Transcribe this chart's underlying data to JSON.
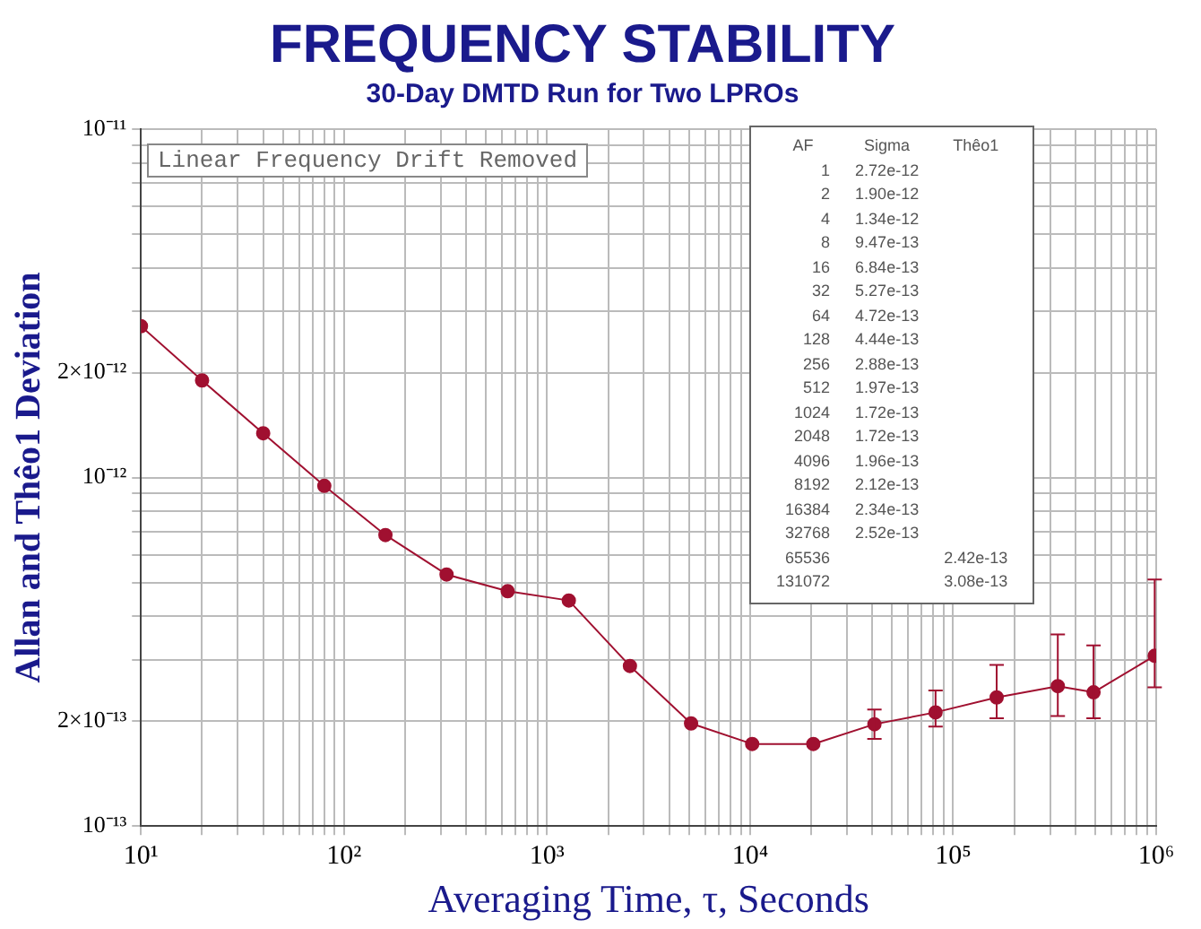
{
  "chart_data": {
    "type": "line",
    "title": "FREQUENCY STABILITY",
    "subtitle": "30-Day DMTD Run for Two LPROs",
    "xlabel": "Averaging Time, τ, Seconds",
    "ylabel": "Allan and Thêo1 Deviation",
    "x": [
      10,
      20,
      40,
      80,
      160,
      320,
      640,
      1280,
      2560,
      5120,
      10240,
      20480,
      40960,
      81920,
      163840,
      327680,
      491520,
      983040
    ],
    "series": [
      {
        "color": "#a01030",
        "values": [
          2.72e-12,
          1.9e-12,
          1.34e-12,
          9.47e-13,
          6.84e-13,
          5.27e-13,
          4.72e-13,
          4.44e-13,
          2.88e-13,
          1.97e-13,
          1.72e-13,
          1.72e-13,
          1.96e-13,
          2.12e-13,
          2.34e-13,
          2.52e-13,
          2.42e-13,
          3.08e-13
        ],
        "errors": [
          null,
          null,
          null,
          null,
          null,
          null,
          null,
          null,
          null,
          null,
          null,
          null,
          [
            1.78e-13,
            2.16e-13
          ],
          [
            1.93e-13,
            2.45e-13
          ],
          [
            2.04e-13,
            2.9e-13
          ],
          [
            2.07e-13,
            3.55e-13
          ],
          [
            2.04e-13,
            3.3e-13
          ],
          [
            2.5e-13,
            5.1e-13
          ]
        ]
      }
    ],
    "log": "xy",
    "xlim": [
      10,
      1000000
    ],
    "ylim": [
      1e-13,
      1e-11
    ],
    "xticks": [
      {
        "value": 10,
        "label": "10¹"
      },
      {
        "value": 20,
        "label": null
      },
      {
        "value": 30,
        "label": null
      },
      {
        "value": 40,
        "label": null
      },
      {
        "value": 50,
        "label": null
      },
      {
        "value": 60,
        "label": null
      },
      {
        "value": 70,
        "label": null
      },
      {
        "value": 80,
        "label": null
      },
      {
        "value": 90,
        "label": null
      },
      {
        "value": 100,
        "label": "10²"
      },
      {
        "value": 200,
        "label": null
      },
      {
        "value": 300,
        "label": null
      },
      {
        "value": 400,
        "label": null
      },
      {
        "value": 500,
        "label": null
      },
      {
        "value": 600,
        "label": null
      },
      {
        "value": 700,
        "label": null
      },
      {
        "value": 800,
        "label": null
      },
      {
        "value": 900,
        "label": null
      },
      {
        "value": 1000,
        "label": "10³"
      },
      {
        "value": 2000,
        "label": null
      },
      {
        "value": 3000,
        "label": null
      },
      {
        "value": 4000,
        "label": null
      },
      {
        "value": 5000,
        "label": null
      },
      {
        "value": 6000,
        "label": null
      },
      {
        "value": 7000,
        "label": null
      },
      {
        "value": 8000,
        "label": null
      },
      {
        "value": 9000,
        "label": null
      },
      {
        "value": 10000,
        "label": "10⁴"
      },
      {
        "value": 20000,
        "label": null
      },
      {
        "value": 30000,
        "label": null
      },
      {
        "value": 40000,
        "label": null
      },
      {
        "value": 50000,
        "label": null
      },
      {
        "value": 60000,
        "label": null
      },
      {
        "value": 70000,
        "label": null
      },
      {
        "value": 80000,
        "label": null
      },
      {
        "value": 90000,
        "label": null
      },
      {
        "value": 100000,
        "label": "10⁵"
      },
      {
        "value": 200000,
        "label": null
      },
      {
        "value": 300000,
        "label": null
      },
      {
        "value": 400000,
        "label": null
      },
      {
        "value": 500000,
        "label": null
      },
      {
        "value": 600000,
        "label": null
      },
      {
        "value": 700000,
        "label": null
      },
      {
        "value": 800000,
        "label": null
      },
      {
        "value": 900000,
        "label": null
      },
      {
        "value": 1000000,
        "label": "10⁶"
      }
    ],
    "yticks": [
      {
        "value": 1e-13,
        "label": "10⁻¹³"
      },
      {
        "value": 2e-13,
        "label": "2×10⁻¹³"
      },
      {
        "value": 3e-13,
        "label": null
      },
      {
        "value": 4e-13,
        "label": null
      },
      {
        "value": 5e-13,
        "label": null
      },
      {
        "value": 6e-13,
        "label": null
      },
      {
        "value": 7e-13,
        "label": null
      },
      {
        "value": 8e-13,
        "label": null
      },
      {
        "value": 9e-13,
        "label": null
      },
      {
        "value": 1e-12,
        "label": "10⁻¹²"
      },
      {
        "value": 2e-12,
        "label": "2×10⁻¹²"
      },
      {
        "value": 3e-12,
        "label": null
      },
      {
        "value": 4e-12,
        "label": null
      },
      {
        "value": 5e-12,
        "label": null
      },
      {
        "value": 6e-12,
        "label": null
      },
      {
        "value": 7e-12,
        "label": null
      },
      {
        "value": 8e-12,
        "label": null
      },
      {
        "value": 9e-12,
        "label": null
      },
      {
        "value": 1e-11,
        "label": "10⁻¹¹"
      }
    ],
    "grid": true,
    "legend": false,
    "marker": "circle",
    "line_style": "solid",
    "annotations": [
      "Linear Frequency Drift Removed",
      "AF\tSigma\tThêo1",
      "1\t2.72e-12\t",
      "2\t1.90e-12\t",
      "4\t1.34e-12\t",
      "8\t9.47e-13\t",
      "16\t6.84e-13\t",
      "32\t5.27e-13\t",
      "64\t4.72e-13\t",
      "128\t4.44e-13\t",
      "256\t2.88e-13\t",
      "512\t1.97e-13\t",
      "1024\t1.72e-13\t",
      "2048\t1.72e-13\t",
      "4096\t1.96e-13\t",
      "8192\t2.12e-13\t",
      "16384\t2.34e-13\t",
      "32768\t2.52e-13\t",
      "65536\t\t2.42e-13",
      "131072\t\t3.08e-13"
    ]
  }
}
